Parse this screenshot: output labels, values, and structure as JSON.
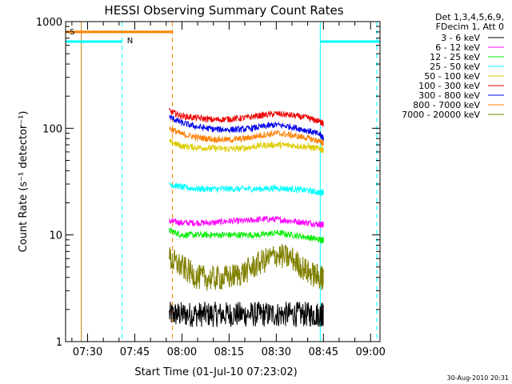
{
  "chart_data": {
    "type": "line",
    "title": "HESSI Observing Summary Count Rates",
    "xlabel": "Start Time (01-Jul-10 07:23:02)",
    "ylabel": "Count Rate (s⁻¹ detector⁻¹)",
    "y_scale": "log",
    "ylim": [
      1,
      1000
    ],
    "xlim": [
      "07:23",
      "09:03"
    ],
    "x_ticks": [
      "07:30",
      "07:45",
      "08:00",
      "08:15",
      "08:30",
      "08:45",
      "09:00"
    ],
    "y_ticks": [
      "1",
      "10",
      "100",
      "1000"
    ],
    "legend_header": [
      "Det 1,3,4,5,6,9,",
      "FDecim 1, Att 0"
    ],
    "legend_position": "top-right",
    "x": [
      "07:56",
      "08:00",
      "08:05",
      "08:10",
      "08:15",
      "08:20",
      "08:25",
      "08:30",
      "08:35",
      "08:40",
      "08:44",
      "08:45"
    ],
    "series": [
      {
        "name": "3 - 6 keV",
        "color": "#000000",
        "values": [
          1.8,
          1.8,
          1.8,
          1.8,
          1.8,
          1.8,
          1.8,
          1.8,
          1.8,
          1.8,
          1.8,
          1.8
        ]
      },
      {
        "name": "6 - 12 keV",
        "color": "#ff00ff",
        "values": [
          13.5,
          13,
          13,
          13,
          13.5,
          13.5,
          14,
          14,
          13.5,
          13,
          12.5,
          12.5
        ]
      },
      {
        "name": "12 - 25 keV",
        "color": "#00ee00",
        "values": [
          11,
          10,
          10,
          10,
          10,
          10,
          10,
          10.5,
          10,
          9.5,
          9,
          9
        ]
      },
      {
        "name": "25 - 50 keV",
        "color": "#00ffff",
        "values": [
          30,
          28,
          27,
          27,
          27,
          27,
          27,
          27.5,
          27,
          26,
          25,
          25
        ]
      },
      {
        "name": "50 - 100 keV",
        "color": "#ddcc00",
        "values": [
          75,
          68,
          66,
          65,
          64,
          65,
          69,
          70,
          69,
          67,
          64,
          62
        ]
      },
      {
        "name": "100 - 300 keV",
        "color": "#ee0000",
        "values": [
          145,
          130,
          125,
          120,
          122,
          125,
          132,
          137,
          132,
          125,
          115,
          110
        ]
      },
      {
        "name": "300 - 800 keV",
        "color": "#0000ee",
        "values": [
          128,
          112,
          103,
          98,
          97,
          98,
          103,
          108,
          103,
          95,
          87,
          80
        ]
      },
      {
        "name": "800 - 7000 keV",
        "color": "#ff8000",
        "values": [
          100,
          88,
          82,
          79,
          78,
          80,
          86,
          90,
          86,
          81,
          75,
          73
        ]
      },
      {
        "name": "7000 - 20000 keV",
        "color": "#808000",
        "values": [
          6,
          5,
          4,
          3.9,
          4,
          4.5,
          5.5,
          6.5,
          6,
          4.5,
          4,
          4
        ]
      }
    ],
    "annotations": {
      "saa_flag": {
        "label": "S",
        "color": "#ff8000",
        "value": 800,
        "start": "07:23",
        "end": "07:57"
      },
      "night_flag": {
        "label": "N",
        "color": "#00ffff",
        "value": 650,
        "segments": [
          [
            "07:23",
            "07:41"
          ],
          [
            "08:44",
            "09:03"
          ]
        ]
      },
      "vertical_lines": [
        {
          "time": "07:28",
          "color": "#c08000",
          "style": "solid"
        },
        {
          "time": "07:41",
          "color": "#00ffff",
          "style": "dashed"
        },
        {
          "time": "07:57",
          "color": "#ff8000",
          "style": "dashed"
        },
        {
          "time": "08:44",
          "color": "#00ffff",
          "style": "solid"
        },
        {
          "time": "09:02",
          "color": "#00ffff",
          "style": "dashed"
        }
      ]
    },
    "footer_timestamp": "30-Aug-2010 20:31"
  }
}
